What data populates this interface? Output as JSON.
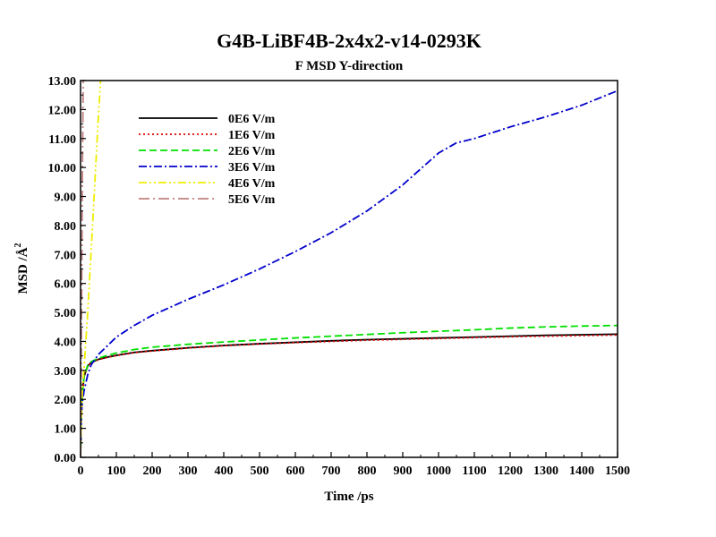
{
  "chart_data": {
    "type": "line",
    "title": "G4B-LiBF4B-2x4x2-v14-0293K",
    "subtitle": "F MSD Y-direction",
    "xlabel": "Time /ps",
    "ylabel_main": "MSD /Å",
    "ylabel_sup": "2",
    "xlim": [
      0,
      1500
    ],
    "ylim": [
      0,
      13
    ],
    "xticks": [
      0,
      100,
      200,
      300,
      400,
      500,
      600,
      700,
      800,
      900,
      1000,
      1100,
      1200,
      1300,
      1400,
      1500
    ],
    "xtick_labels": [
      "0",
      "100",
      "200",
      "300",
      "400",
      "500",
      "600",
      "700",
      "800",
      "900",
      "1000",
      "1100",
      "1200",
      "1300",
      "1400",
      "1500"
    ],
    "yticks": [
      0,
      1,
      2,
      3,
      4,
      5,
      6,
      7,
      8,
      9,
      10,
      11,
      12,
      13
    ],
    "ytick_labels": [
      "0.00",
      "1.00",
      "2.00",
      "3.00",
      "4.00",
      "5.00",
      "6.00",
      "7.00",
      "8.00",
      "9.00",
      "10.00",
      "11.00",
      "12.00",
      "13.00"
    ],
    "grid": false,
    "legend_position": "top-left",
    "series": [
      {
        "name": "0E6 V/m",
        "color": "#000000",
        "dash": "solid",
        "x": [
          0,
          2,
          5,
          10,
          20,
          30,
          50,
          75,
          100,
          150,
          200,
          300,
          400,
          500,
          600,
          700,
          800,
          900,
          1000,
          1100,
          1200,
          1300,
          1400,
          1500
        ],
        "y": [
          0,
          1.5,
          2.2,
          2.8,
          3.15,
          3.28,
          3.38,
          3.46,
          3.52,
          3.62,
          3.68,
          3.78,
          3.86,
          3.92,
          3.97,
          4.02,
          4.06,
          4.09,
          4.12,
          4.15,
          4.18,
          4.21,
          4.23,
          4.25
        ]
      },
      {
        "name": "1E6 V/m",
        "color": "#e00000",
        "dash": "dotted",
        "x": [
          0,
          2,
          5,
          10,
          20,
          30,
          50,
          75,
          100,
          150,
          200,
          300,
          400,
          500,
          600,
          700,
          800,
          900,
          1000,
          1100,
          1200,
          1300,
          1400,
          1500
        ],
        "y": [
          0,
          1.5,
          2.2,
          2.8,
          3.15,
          3.27,
          3.37,
          3.45,
          3.51,
          3.61,
          3.67,
          3.77,
          3.85,
          3.91,
          3.96,
          4.0,
          4.04,
          4.07,
          4.1,
          4.13,
          4.16,
          4.18,
          4.2,
          4.22
        ]
      },
      {
        "name": "2E6 V/m",
        "color": "#00e000",
        "dash": "dashed",
        "x": [
          0,
          2,
          5,
          10,
          20,
          30,
          50,
          75,
          100,
          150,
          200,
          300,
          400,
          500,
          600,
          700,
          800,
          900,
          1000,
          1100,
          1200,
          1300,
          1400,
          1500
        ],
        "y": [
          0,
          1.5,
          2.2,
          2.8,
          3.18,
          3.3,
          3.42,
          3.52,
          3.6,
          3.72,
          3.8,
          3.9,
          3.98,
          4.05,
          4.12,
          4.18,
          4.24,
          4.3,
          4.35,
          4.4,
          4.46,
          4.5,
          4.53,
          4.55
        ]
      },
      {
        "name": "3E6 V/m",
        "color": "#0000cc",
        "dash": "dashdot",
        "x": [
          0,
          2,
          5,
          10,
          20,
          30,
          50,
          75,
          100,
          150,
          200,
          300,
          400,
          500,
          600,
          700,
          800,
          900,
          950,
          1000,
          1050,
          1100,
          1200,
          1300,
          1400,
          1500
        ],
        "y": [
          0,
          1.4,
          1.9,
          2.3,
          2.85,
          3.2,
          3.55,
          3.85,
          4.15,
          4.55,
          4.9,
          5.45,
          5.95,
          6.5,
          7.1,
          7.75,
          8.5,
          9.4,
          9.95,
          10.5,
          10.85,
          11.0,
          11.4,
          11.75,
          12.15,
          12.65
        ]
      },
      {
        "name": "4E6 V/m",
        "color": "#eeee00",
        "dash": "dashdotdot",
        "x": [
          0,
          2,
          5,
          10,
          20,
          30,
          40,
          50,
          56
        ],
        "y": [
          0,
          1.2,
          2.2,
          3.1,
          5.0,
          7.2,
          9.5,
          11.8,
          13.0
        ]
      },
      {
        "name": "5E6 V/m",
        "color": "#c08080",
        "dash": "longdashdot",
        "x": [
          0,
          1,
          2,
          3,
          4,
          5,
          6,
          7.5
        ],
        "y": [
          0,
          1.5,
          3.5,
          5.5,
          7.5,
          9.5,
          11.0,
          13.0
        ]
      }
    ]
  }
}
